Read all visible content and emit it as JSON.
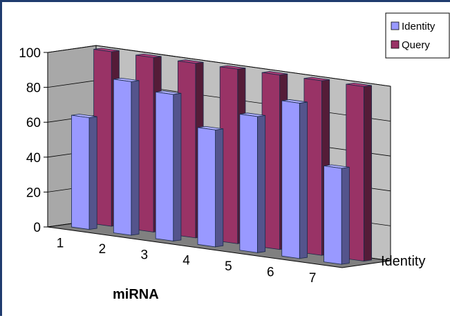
{
  "chart_data": {
    "type": "bar",
    "subtype": "3d-clustered-column",
    "categories": [
      "1",
      "2",
      "3",
      "4",
      "5",
      "6",
      "7"
    ],
    "series": [
      {
        "name": "Identity",
        "values": [
          64,
          88,
          84,
          67,
          78,
          89,
          55
        ],
        "color": "#9999ff"
      },
      {
        "name": "Query",
        "values": [
          100,
          100,
          100,
          100,
          100,
          100,
          100
        ],
        "color": "#993366"
      }
    ],
    "xlabel": "miRNA",
    "depth_label": "Identity",
    "ylim": [
      0,
      100
    ],
    "yticks": [
      0,
      20,
      40,
      60,
      80,
      100
    ],
    "legend": "top-right",
    "grid": true,
    "colors": {
      "wall": "#c0c0c0",
      "floor": "#808080",
      "frame": "#1f3b6e"
    }
  }
}
